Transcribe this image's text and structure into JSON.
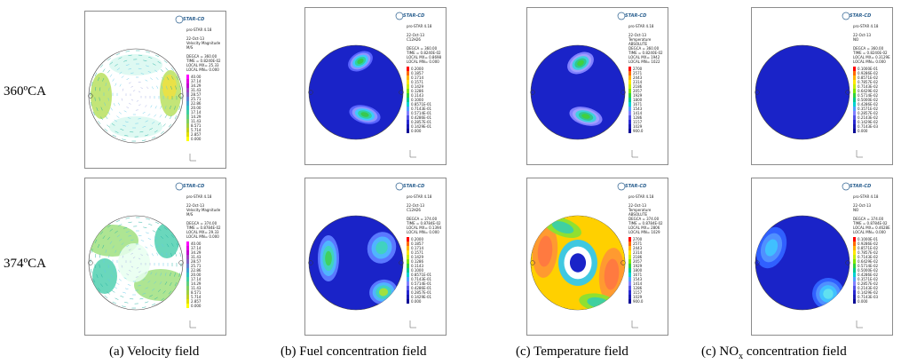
{
  "row_labels": [
    "360ºCA",
    "374ºCA"
  ],
  "captions": [
    {
      "text": "(a) Velocity field"
    },
    {
      "text": "(b) Fuel concentration field"
    },
    {
      "text": "(c) Temperature field"
    },
    {
      "prefix": "(c) NO",
      "sub": "x",
      "suffix": " concentration field"
    }
  ],
  "logo_text": "STAR-CD",
  "panels": {
    "velocity_360": {
      "lines": [
        "pro-STAR 4.18",
        "",
        "22-Oct-13",
        "Velocity Magnitude",
        "M/S",
        "",
        "DEGCA = 360.00",
        "TIME = 0.8240E-02",
        "LOCAL MX= 25.33",
        "LOCAL MN= 0.000"
      ],
      "legend": [
        "40.00",
        "37.14",
        "34.29",
        "31.43",
        "28.57",
        "25.71",
        "22.86",
        "20.00",
        "17.14",
        "14.29",
        "11.43",
        "8.571",
        "5.714",
        "2.857",
        "0.000"
      ]
    },
    "fuel_360": {
      "lines": [
        "pro-STAR 4.18",
        "",
        "22-Oct-13",
        "C12H26",
        "",
        "DEGCA = 360.00",
        "TIME = 0.8240E-02",
        "LOCAL MX= 0.8698",
        "LOCAL MN= 0.000"
      ],
      "legend": [
        "0.2000",
        "0.1857",
        "0.1714",
        "0.1571",
        "0.1429",
        "0.1286",
        "0.1143",
        "0.1000",
        "0.8571E-01",
        "0.7143E-01",
        "0.5714E-01",
        "0.4286E-01",
        "0.2857E-01",
        "0.1429E-01",
        "0.000"
      ]
    },
    "temp_360": {
      "lines": [
        "pro-STAR 4.18",
        "",
        "22-Oct-13",
        "Temperature",
        "ABSOLUTE",
        "DEGCA = 360.00",
        "TIME = 0.8240E-02",
        "LOCAL MX= 1942",
        "LOCAL MN= 1022"
      ],
      "legend": [
        "2700",
        "2571",
        "2443",
        "2314",
        "2186",
        "2057",
        "1929",
        "1800",
        "1671",
        "1543",
        "1414",
        "1286",
        "1157",
        "1029",
        "900.0"
      ]
    },
    "nox_360": {
      "lines": [
        "pro-STAR 4.18",
        "",
        "22-Oct-13",
        "NO",
        "",
        "DEGCA = 360.00",
        "TIME = 0.8240E-02",
        "LOCAL MX= 0.3129E",
        "LOCAL MN= 0.000"
      ],
      "legend": [
        "0.1000E-01",
        "0.9286E-02",
        "0.8571E-02",
        "0.7857E-02",
        "0.7143E-02",
        "0.6429E-02",
        "0.5714E-02",
        "0.5000E-02",
        "0.4286E-02",
        "0.3571E-02",
        "0.2857E-02",
        "0.2143E-02",
        "0.1429E-02",
        "0.7143E-03",
        "0.000"
      ]
    },
    "velocity_374": {
      "lines": [
        "pro-STAR 4.18",
        "",
        "22-Oct-13",
        "Velocity Magnitude",
        "M/S",
        "",
        "DEGCA = 374.00",
        "TIME = 0.8784E-02",
        "LOCAL MX= 29.33",
        "LOCAL MN= 0.000"
      ],
      "legend": [
        "40.00",
        "37.14",
        "34.29",
        "31.43",
        "28.57",
        "25.71",
        "22.86",
        "20.00",
        "17.14",
        "14.29",
        "11.43",
        "8.571",
        "5.714",
        "2.857",
        "0.000"
      ]
    },
    "fuel_374": {
      "lines": [
        "pro-STAR 4.18",
        "",
        "22-Oct-13",
        "C12H26",
        "",
        "DEGCA = 374.00",
        "TIME = 0.8784E-02",
        "LOCAL MX= 0.1394",
        "LOCAL MN= 0.000"
      ],
      "legend": [
        "0.2000",
        "0.1857",
        "0.1714",
        "0.1571",
        "0.1429",
        "0.1286",
        "0.1143",
        "0.1000",
        "0.8571E-01",
        "0.7143E-01",
        "0.5714E-01",
        "0.4286E-01",
        "0.2857E-01",
        "0.1429E-01",
        "0.000"
      ]
    },
    "temp_374": {
      "lines": [
        "pro-STAR 4.18",
        "",
        "22-Oct-13",
        "Temperature",
        "ABSOLUTE",
        "DEGCA = 374.00",
        "TIME = 0.8784E-02",
        "LOCAL MX= 2806",
        "LOCAL MN= 1029"
      ],
      "legend": [
        "2700",
        "2571",
        "2443",
        "2314",
        "2186",
        "2057",
        "1929",
        "1800",
        "1671",
        "1543",
        "1414",
        "1286",
        "1157",
        "1029",
        "900.0"
      ]
    },
    "nox_374": {
      "lines": [
        "pro-STAR 4.18",
        "",
        "22-Oct-13",
        "NO",
        "",
        "DEGCA = 374.00",
        "TIME = 0.8784E-02",
        "LOCAL MX= 0.4628E",
        "LOCAL MN= 0.000"
      ],
      "legend": [
        "0.1000E-01",
        "0.9286E-02",
        "0.8571E-02",
        "0.7857E-02",
        "0.7143E-02",
        "0.6429E-02",
        "0.5714E-02",
        "0.5000E-02",
        "0.4286E-02",
        "0.3571E-02",
        "0.2857E-02",
        "0.2143E-02",
        "0.1429E-02",
        "0.7143E-03",
        "0.000"
      ]
    }
  },
  "colors": {
    "field_blue": "#1a23c8",
    "contour_scale": [
      "#ff0000",
      "#ff6a00",
      "#ffb300",
      "#ffe600",
      "#c8f000",
      "#80e600",
      "#30d23c",
      "#00c88c",
      "#00d2d2",
      "#50a0ff",
      "#8080ff",
      "#5050e6",
      "#2828d2",
      "#1a1ab4",
      "#0a0a96"
    ],
    "velocity_scale": [
      "#ff00ff",
      "#e000e0",
      "#c000d0",
      "#a040c0",
      "#8060c0",
      "#6080d0",
      "#40a0d0",
      "#30c0c0",
      "#40d0a0",
      "#60d080",
      "#80d060",
      "#a0d040",
      "#c0d020",
      "#e0e000",
      "#ffff00"
    ]
  }
}
